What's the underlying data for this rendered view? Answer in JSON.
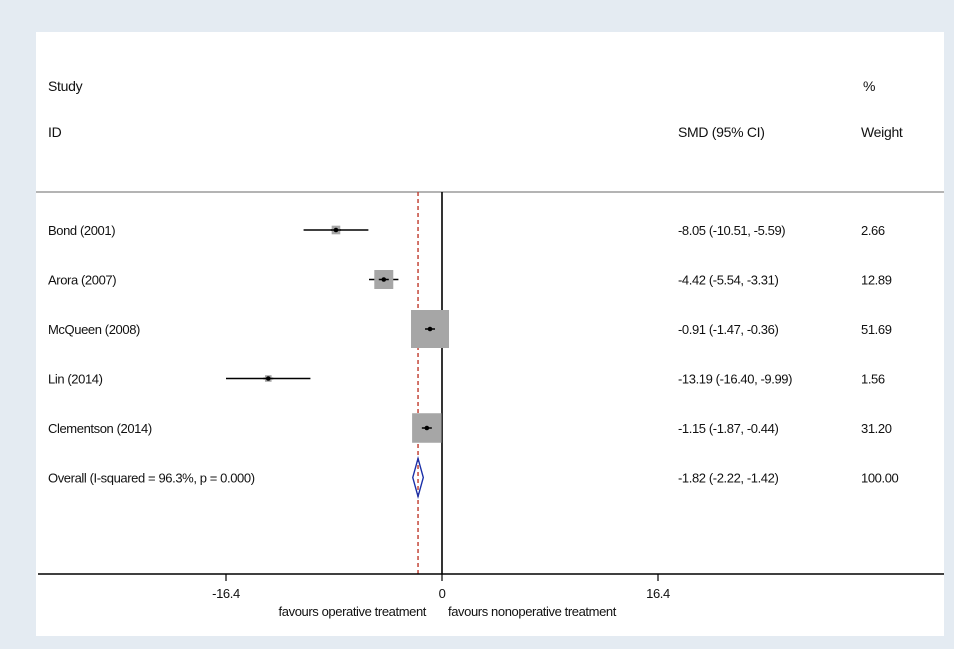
{
  "headers": {
    "study": "Study",
    "id": "ID",
    "pct": "%",
    "smd": "SMD (95% CI)",
    "weight": "Weight"
  },
  "chart_data": {
    "type": "forest",
    "x_ticks": [
      {
        "value": -16.4,
        "label": "-16.4"
      },
      {
        "value": 0,
        "label": "0"
      },
      {
        "value": 16.4,
        "label": "16.4"
      }
    ],
    "xlim": [
      -29.5,
      31.5
    ],
    "left_note": "favours operative treatment",
    "right_note": "favours nonoperative treatment",
    "studies": [
      {
        "label": "Bond (2001)",
        "est": -8.05,
        "lo": -10.51,
        "hi": -5.59,
        "ci_text": "-8.05 (-10.51, -5.59)",
        "weight": 2.66,
        "weight_text": "2.66"
      },
      {
        "label": "Arora (2007)",
        "est": -4.42,
        "lo": -5.54,
        "hi": -3.31,
        "ci_text": "-4.42 (-5.54, -3.31)",
        "weight": 12.89,
        "weight_text": "12.89"
      },
      {
        "label": "McQueen (2008)",
        "est": -0.91,
        "lo": -1.47,
        "hi": -0.36,
        "ci_text": "-0.91 (-1.47, -0.36)",
        "weight": 51.69,
        "weight_text": "51.69"
      },
      {
        "label": "Lin (2014)",
        "est": -13.19,
        "lo": -16.4,
        "hi": -9.99,
        "ci_text": "-13.19 (-16.40, -9.99)",
        "weight": 1.56,
        "weight_text": "1.56"
      },
      {
        "label": "Clementson (2014)",
        "est": -1.15,
        "lo": -1.87,
        "hi": -0.44,
        "ci_text": "-1.15 (-1.87, -0.44)",
        "weight": 31.2,
        "weight_text": "31.20"
      }
    ],
    "overall": {
      "label": "Overall  (I-squared = 96.3%, p = 0.000)",
      "est": -1.82,
      "lo": -2.22,
      "hi": -1.42,
      "ci_text": "-1.82 (-2.22, -1.42)",
      "weight_text": "100.00"
    },
    "colors": {
      "ci": "#000000",
      "box": "#a6a6a6",
      "diamond": "#1a2fa8",
      "overall_line": "#c0392b"
    }
  }
}
